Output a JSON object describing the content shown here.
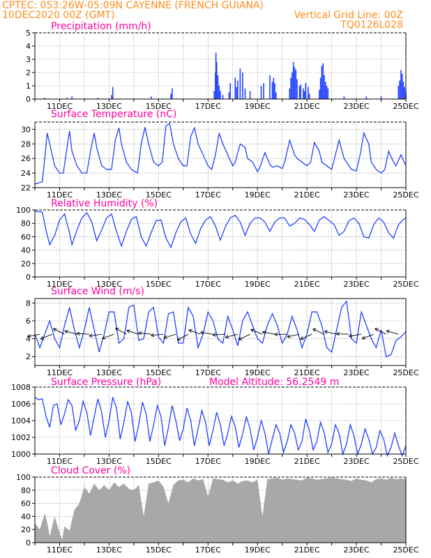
{
  "header": {
    "line1": "CPTEC:   053:26W-05:09N   CAYENNE (FRENCH GUIANA)",
    "line2_left": "10DEC2020 00Z (GMT)",
    "line2_right": "Vertical Grid Line: 00Z",
    "code": "TQ0126L028"
  },
  "colors": {
    "header": "#ff8c1a",
    "title": "#ff00a0",
    "series": "#2040ff",
    "cloud": "#a8a8a8",
    "grid": "#555555"
  },
  "x_tick_labels": [
    "11DEC",
    "13DEC",
    "15DEC",
    "17DEC",
    "19DEC",
    "21DEC",
    "23DEC",
    "25DEC"
  ],
  "extra_label": "Model Altitude: 56.2549 m",
  "chart_data": [
    {
      "type": "bar",
      "title": "Precipitation (mm/h)",
      "ylim": [
        0,
        5
      ],
      "yticks": [
        0,
        1,
        2,
        3,
        4,
        5
      ],
      "x_days": [
        0.4,
        1.3,
        1.5,
        2.55,
        3.1,
        3.15,
        4.7,
        5.5,
        5.55,
        7.25,
        7.3,
        7.32,
        7.35,
        7.4,
        7.45,
        7.5,
        7.6,
        7.85,
        7.9,
        8.1,
        8.15,
        8.2,
        8.3,
        8.4,
        8.5,
        8.7,
        9.15,
        9.25,
        9.5,
        9.6,
        9.65,
        9.7,
        9.75,
        10.3,
        10.35,
        10.4,
        10.45,
        10.5,
        10.55,
        10.6,
        10.7,
        10.75,
        10.85,
        10.9,
        10.95,
        11.05,
        11.1,
        11.5,
        11.55,
        11.6,
        11.65,
        11.7,
        11.75,
        11.8,
        11.85,
        12.5,
        13.4,
        14.0,
        14.7,
        14.75,
        14.8,
        14.85,
        14.9,
        14.95,
        15.0
      ],
      "values": [
        0.1,
        0.1,
        0.2,
        0.1,
        0.3,
        0.9,
        0.2,
        0.4,
        0.8,
        0.6,
        2.0,
        3.5,
        2.8,
        1.8,
        1.0,
        0.6,
        0.3,
        0.5,
        1.2,
        1.6,
        0.9,
        1.4,
        2.3,
        2.0,
        0.8,
        0.6,
        1.0,
        1.2,
        1.8,
        1.3,
        1.6,
        1.2,
        0.5,
        0.8,
        1.6,
        2.0,
        2.8,
        2.4,
        2.2,
        1.5,
        1.0,
        1.1,
        0.8,
        0.6,
        1.2,
        0.9,
        0.4,
        0.7,
        1.6,
        2.5,
        2.7,
        1.8,
        1.3,
        1.0,
        0.8,
        0.2,
        0.2,
        0.2,
        1.0,
        1.4,
        2.2,
        1.9,
        1.3,
        0.9,
        0.5
      ]
    },
    {
      "type": "line",
      "title": "Surface Temperature (nC)",
      "ylim": [
        22,
        31
      ],
      "yticks": [
        22,
        24,
        26,
        28,
        30
      ],
      "x_days": [
        0.0,
        0.1,
        0.2,
        0.3,
        0.4,
        0.5,
        0.7,
        0.8,
        1.0,
        1.15,
        1.3,
        1.4,
        1.5,
        1.7,
        1.9,
        2.1,
        2.25,
        2.4,
        2.5,
        2.7,
        2.9,
        3.1,
        3.25,
        3.4,
        3.5,
        3.7,
        3.9,
        4.15,
        4.3,
        4.45,
        4.6,
        4.8,
        5.0,
        5.15,
        5.3,
        5.45,
        5.6,
        5.8,
        6.0,
        6.15,
        6.3,
        6.45,
        6.6,
        6.8,
        7.0,
        7.15,
        7.3,
        7.45,
        7.6,
        7.8,
        8.0,
        8.1,
        8.3,
        8.5,
        8.6,
        8.8,
        9.0,
        9.1,
        9.3,
        9.5,
        9.6,
        9.8,
        10.0,
        10.1,
        10.3,
        10.5,
        10.6,
        10.8,
        11.0,
        11.15,
        11.3,
        11.5,
        11.6,
        11.8,
        12.0,
        12.15,
        12.3,
        12.5,
        12.6,
        12.8,
        13.0,
        13.15,
        13.3,
        13.5,
        13.6,
        13.8,
        14.0,
        14.15,
        14.3,
        14.5,
        14.6,
        14.8,
        15.0
      ],
      "values": [
        22.5,
        22.6,
        22.7,
        22.8,
        26.0,
        29.5,
        26.5,
        25.0,
        24.0,
        24.0,
        27.5,
        29.8,
        27.0,
        25.0,
        24.0,
        24.0,
        27.0,
        29.5,
        27.5,
        25.0,
        24.5,
        24.5,
        28.5,
        30.2,
        28.0,
        25.5,
        24.5,
        24.0,
        28.0,
        30.3,
        28.0,
        25.5,
        25.0,
        25.5,
        30.5,
        30.8,
        28.0,
        26.0,
        25.0,
        25.0,
        29.0,
        30.2,
        28.0,
        26.5,
        25.0,
        24.5,
        26.5,
        29.5,
        28.0,
        26.5,
        25.0,
        25.5,
        28.0,
        27.5,
        26.0,
        25.5,
        24.2,
        24.8,
        26.8,
        25.2,
        24.8,
        25.0,
        24.6,
        25.5,
        28.5,
        26.5,
        26.0,
        25.5,
        25.0,
        25.5,
        28.2,
        27.0,
        25.5,
        25.0,
        24.5,
        26.5,
        28.5,
        26.0,
        25.5,
        24.5,
        24.3,
        26.5,
        29.5,
        28.0,
        25.5,
        24.5,
        24.0,
        24.5,
        27.0,
        25.5,
        25.0,
        26.5,
        25.0
      ]
    },
    {
      "type": "line",
      "title": "Relative Humidity (%)",
      "ylim": [
        0,
        100
      ],
      "yticks": [
        0,
        20,
        40,
        60,
        80,
        100
      ],
      "x_days": [
        0.0,
        0.3,
        0.45,
        0.6,
        0.8,
        1.0,
        1.2,
        1.4,
        1.5,
        1.7,
        1.9,
        2.1,
        2.3,
        2.5,
        2.7,
        2.9,
        3.1,
        3.3,
        3.5,
        3.7,
        3.9,
        4.1,
        4.3,
        4.5,
        4.7,
        4.9,
        5.1,
        5.3,
        5.5,
        5.7,
        5.9,
        6.1,
        6.3,
        6.5,
        6.7,
        6.9,
        7.1,
        7.3,
        7.5,
        7.7,
        7.9,
        8.1,
        8.3,
        8.5,
        8.7,
        8.9,
        9.1,
        9.3,
        9.5,
        9.7,
        9.9,
        10.1,
        10.3,
        10.5,
        10.7,
        10.9,
        11.1,
        11.3,
        11.5,
        11.7,
        11.9,
        12.1,
        12.3,
        12.5,
        12.7,
        12.9,
        13.1,
        13.3,
        13.5,
        13.7,
        13.9,
        14.1,
        14.3,
        14.5,
        14.7,
        14.9,
        15.0
      ],
      "values": [
        98,
        97,
        70,
        48,
        62,
        85,
        94,
        66,
        48,
        70,
        88,
        96,
        82,
        54,
        70,
        88,
        94,
        68,
        46,
        68,
        86,
        90,
        60,
        46,
        66,
        84,
        85,
        58,
        44,
        66,
        82,
        88,
        64,
        50,
        72,
        85,
        90,
        76,
        55,
        75,
        88,
        92,
        82,
        62,
        80,
        88,
        88,
        82,
        68,
        82,
        88,
        88,
        76,
        80,
        88,
        86,
        78,
        68,
        85,
        90,
        84,
        78,
        62,
        68,
        84,
        88,
        80,
        60,
        58,
        78,
        88,
        82,
        66,
        58,
        78,
        86,
        88
      ]
    },
    {
      "type": "line",
      "title": "Surface Wind (m/s)",
      "ylim": [
        1,
        8.5
      ],
      "yticks": [
        2,
        4,
        6,
        8
      ],
      "x_days": [
        0.0,
        0.2,
        0.4,
        0.6,
        0.8,
        1.0,
        1.2,
        1.4,
        1.6,
        1.8,
        2.0,
        2.2,
        2.4,
        2.6,
        2.8,
        3.0,
        3.2,
        3.4,
        3.6,
        3.8,
        4.0,
        4.2,
        4.4,
        4.6,
        4.8,
        5.0,
        5.2,
        5.4,
        5.6,
        5.8,
        6.0,
        6.2,
        6.4,
        6.6,
        6.8,
        7.0,
        7.2,
        7.4,
        7.6,
        7.8,
        8.0,
        8.2,
        8.4,
        8.6,
        8.8,
        9.0,
        9.2,
        9.4,
        9.6,
        9.8,
        10.0,
        10.2,
        10.4,
        10.6,
        10.8,
        11.0,
        11.2,
        11.4,
        11.6,
        11.8,
        12.0,
        12.2,
        12.4,
        12.6,
        12.8,
        13.0,
        13.2,
        13.4,
        13.6,
        13.8,
        14.0,
        14.2,
        14.4,
        14.6,
        14.8,
        15.0
      ],
      "values": [
        4.5,
        3.0,
        4.5,
        6.0,
        4.0,
        3.0,
        5.5,
        7.5,
        5.0,
        3.0,
        5.0,
        7.5,
        5.0,
        2.5,
        4.5,
        7.0,
        7.0,
        3.5,
        4.0,
        7.5,
        7.8,
        3.8,
        4.0,
        7.0,
        7.5,
        4.2,
        3.5,
        6.8,
        7.0,
        3.5,
        3.5,
        7.5,
        6.5,
        3.0,
        4.5,
        7.0,
        6.0,
        4.0,
        3.5,
        6.5,
        5.0,
        3.2,
        6.0,
        7.0,
        5.5,
        4.0,
        3.5,
        5.5,
        6.8,
        5.5,
        3.5,
        4.5,
        6.5,
        5.0,
        3.0,
        4.5,
        7.0,
        7.0,
        5.5,
        3.0,
        2.5,
        5.0,
        7.5,
        8.2,
        4.0,
        3.5,
        7.0,
        5.5,
        4.0,
        3.0,
        5.0,
        2.0,
        2.2,
        3.8,
        4.2,
        4.8
      ]
    },
    {
      "type": "line",
      "title": "Surface Pressure (hPa)",
      "ylim": [
        1000,
        1008
      ],
      "yticks": [
        1000,
        1002,
        1004,
        1006,
        1008
      ],
      "x_days": [
        0.0,
        0.15,
        0.3,
        0.45,
        0.6,
        0.75,
        0.9,
        1.05,
        1.2,
        1.35,
        1.5,
        1.65,
        1.8,
        1.95,
        2.1,
        2.25,
        2.4,
        2.55,
        2.7,
        2.85,
        3.0,
        3.15,
        3.3,
        3.45,
        3.6,
        3.75,
        3.9,
        4.05,
        4.2,
        4.35,
        4.5,
        4.65,
        4.8,
        4.95,
        5.1,
        5.25,
        5.4,
        5.55,
        5.7,
        5.85,
        6.0,
        6.15,
        6.3,
        6.45,
        6.6,
        6.75,
        6.9,
        7.05,
        7.2,
        7.35,
        7.5,
        7.65,
        7.8,
        7.95,
        8.1,
        8.25,
        8.4,
        8.55,
        8.7,
        8.85,
        9.0,
        9.15,
        9.3,
        9.45,
        9.6,
        9.75,
        9.9,
        10.05,
        10.2,
        10.35,
        10.5,
        10.65,
        10.8,
        10.95,
        11.1,
        11.25,
        11.4,
        11.55,
        11.7,
        11.85,
        12.0,
        12.15,
        12.3,
        12.45,
        12.6,
        12.75,
        12.9,
        13.05,
        13.2,
        13.35,
        13.5,
        13.65,
        13.8,
        13.95,
        14.1,
        14.25,
        14.4,
        14.55,
        14.7,
        14.85,
        15.0
      ],
      "values": [
        1006.8,
        1006.5,
        1006.6,
        1004.5,
        1003.2,
        1005.8,
        1006.0,
        1003.5,
        1004.8,
        1006.5,
        1005.8,
        1002.8,
        1004.0,
        1006.3,
        1005.0,
        1002.2,
        1004.5,
        1006.6,
        1005.0,
        1002.0,
        1004.0,
        1006.8,
        1005.5,
        1001.8,
        1003.8,
        1006.3,
        1005.0,
        1001.5,
        1003.5,
        1006.2,
        1004.8,
        1001.5,
        1003.5,
        1005.8,
        1004.5,
        1001.0,
        1003.2,
        1005.8,
        1004.0,
        1001.6,
        1003.0,
        1005.5,
        1004.0,
        1001.0,
        1003.0,
        1005.2,
        1003.8,
        1001.0,
        1002.8,
        1005.0,
        1003.5,
        1001.0,
        1002.5,
        1004.5,
        1003.3,
        1000.8,
        1002.4,
        1004.5,
        1003.0,
        1000.5,
        1002.0,
        1004.0,
        1002.5,
        1000.0,
        1001.8,
        1003.5,
        1002.5,
        1000.2,
        1001.5,
        1003.5,
        1002.5,
        1000.5,
        1001.5,
        1004.2,
        1002.8,
        1000.5,
        1001.5,
        1003.8,
        1002.5,
        1000.2,
        1001.2,
        1003.5,
        1002.5,
        1000.0,
        1001.2,
        1003.5,
        1002.2,
        1000.0,
        1001.2,
        1003.0,
        1001.8,
        1000.0,
        1000.8,
        1002.8,
        1001.8,
        999.8,
        1000.8,
        1002.5,
        1001.0,
        999.8,
        1001.0
      ]
    },
    {
      "type": "area",
      "title": "Cloud Cover (%)",
      "ylim": [
        0,
        100
      ],
      "yticks": [
        0,
        20,
        40,
        60,
        80,
        100
      ],
      "x_days": [
        0.0,
        0.2,
        0.4,
        0.5,
        0.6,
        0.8,
        1.0,
        1.1,
        1.2,
        1.4,
        1.5,
        1.6,
        1.8,
        2.0,
        2.2,
        2.4,
        2.6,
        2.8,
        3.0,
        3.2,
        3.4,
        3.6,
        3.8,
        4.0,
        4.2,
        4.4,
        4.6,
        4.8,
        5.0,
        5.2,
        5.4,
        5.6,
        5.8,
        6.0,
        6.2,
        6.4,
        6.6,
        6.8,
        7.0,
        7.2,
        7.4,
        7.6,
        7.8,
        8.0,
        8.2,
        8.4,
        8.6,
        8.8,
        9.0,
        9.2,
        9.4,
        9.6,
        9.8,
        10.0,
        10.2,
        10.4,
        10.6,
        10.8,
        11.0,
        11.2,
        11.4,
        11.6,
        11.8,
        12.0,
        12.2,
        12.4,
        12.6,
        12.8,
        13.0,
        13.2,
        13.4,
        13.6,
        13.8,
        14.0,
        14.2,
        14.4,
        14.6,
        14.8,
        15.0
      ],
      "values": [
        30,
        20,
        45,
        30,
        10,
        40,
        15,
        5,
        25,
        18,
        35,
        50,
        60,
        85,
        75,
        90,
        80,
        88,
        80,
        92,
        85,
        90,
        82,
        80,
        88,
        40,
        90,
        92,
        95,
        85,
        60,
        88,
        95,
        96,
        92,
        98,
        95,
        97,
        70,
        98,
        97,
        96,
        92,
        95,
        90,
        94,
        95,
        92,
        96,
        40,
        97,
        98,
        99,
        96,
        98,
        97,
        96,
        95,
        99,
        98,
        96,
        97,
        98,
        99,
        98,
        97,
        96,
        94,
        98,
        96,
        95,
        92,
        97,
        98,
        96,
        99,
        97,
        98,
        97
      ]
    }
  ]
}
